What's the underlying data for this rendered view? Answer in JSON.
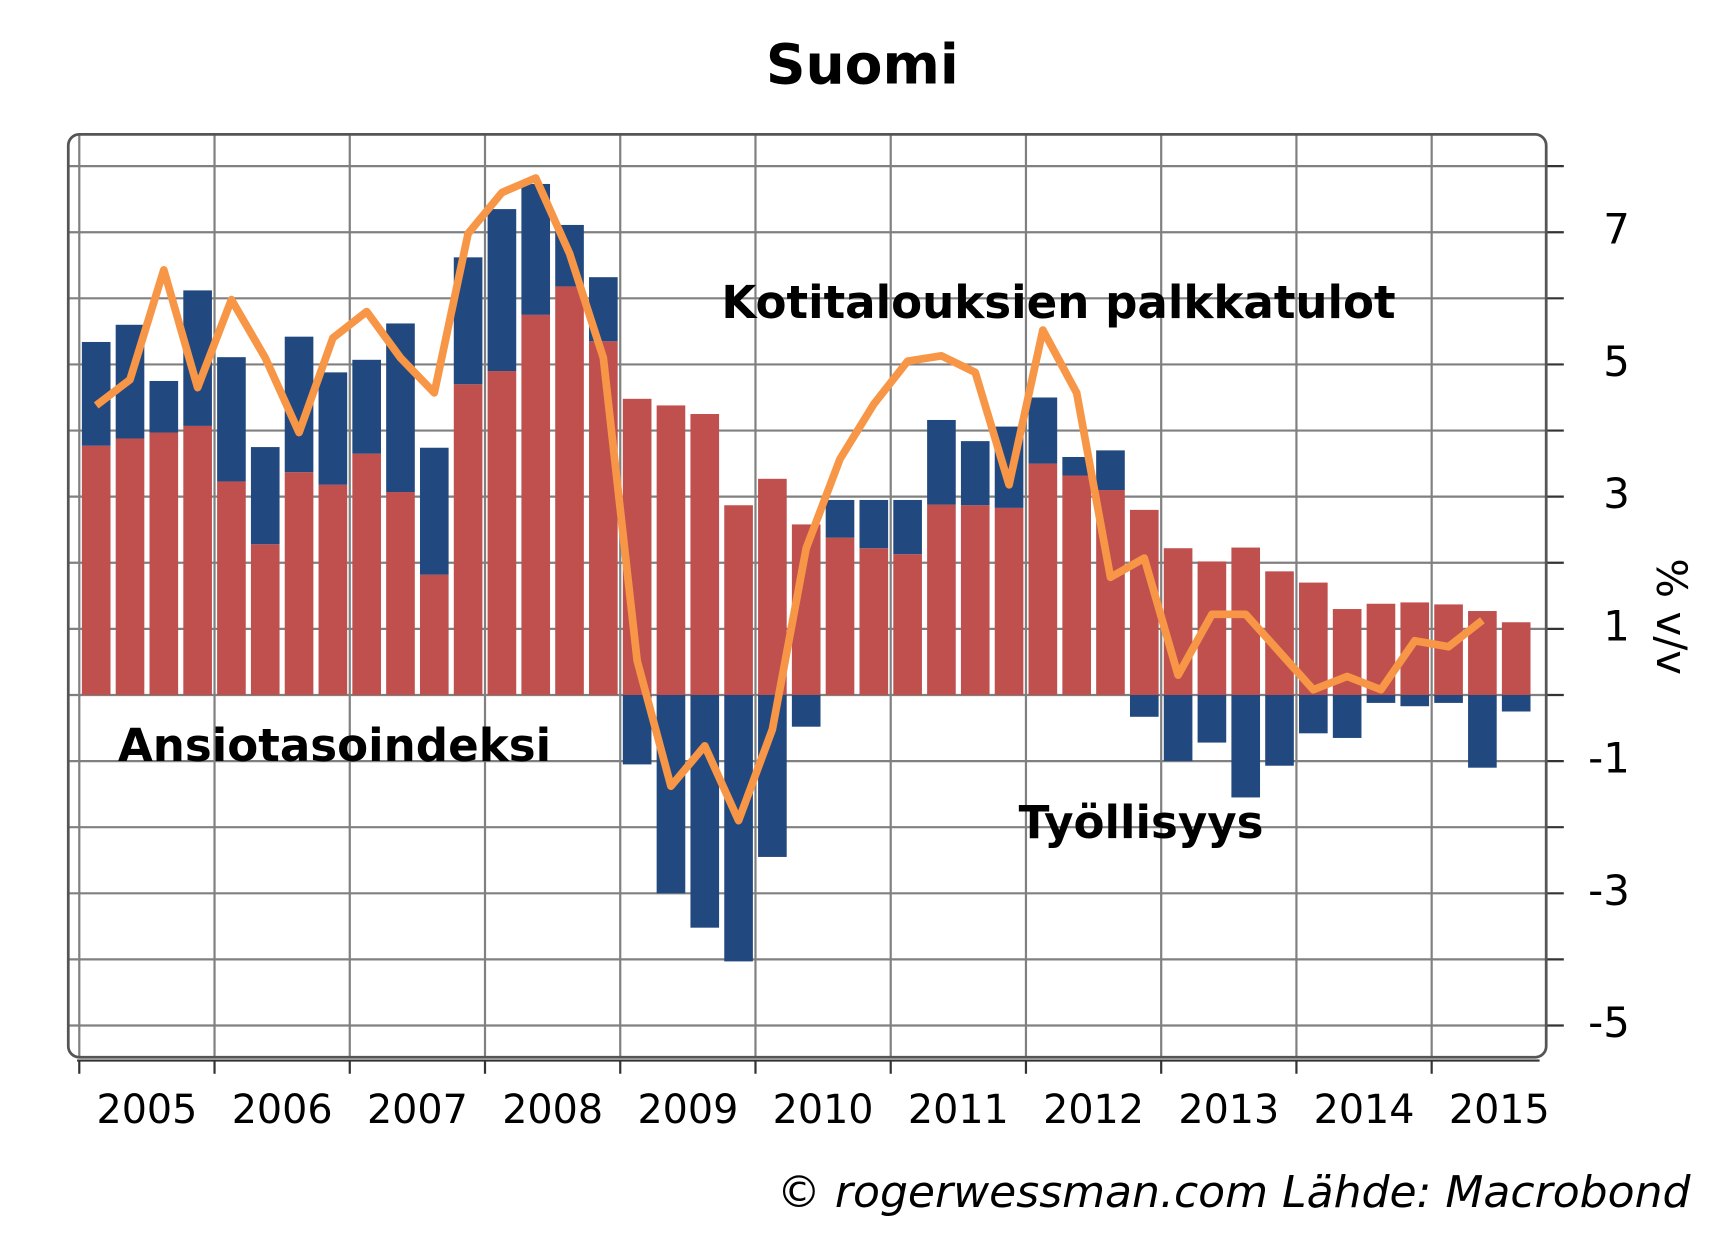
{
  "chart_data": {
    "type": "bar-line",
    "title": "Suomi",
    "y_axis_label": "% v/v",
    "credit": "© rogerwessman.com Lähde: Macrobond",
    "categories": [
      null,
      null,
      null,
      null,
      null,
      null,
      null,
      null,
      null,
      null,
      null,
      null,
      null,
      null,
      null,
      null,
      null,
      null,
      null,
      null,
      null,
      null,
      null,
      null,
      null,
      null,
      null,
      null,
      null,
      null,
      null,
      null,
      null,
      null,
      null,
      null,
      null,
      null,
      null,
      null,
      null,
      null,
      null
    ],
    "xticks": [
      2005,
      2006,
      2007,
      2008,
      2009,
      2010,
      2011,
      2012,
      2013,
      2014,
      2015
    ],
    "ylim": [
      -5.48,
      8.48
    ],
    "yticks": [
      -5,
      -3,
      -1,
      1,
      3,
      5,
      7
    ],
    "yminor_ticks": [
      -4,
      -2,
      0,
      2,
      4,
      6,
      8
    ],
    "grid": true,
    "stacked": true,
    "series": [
      {
        "name": "Ansiotasoindeksi",
        "color": "#c0504d",
        "kind": "bar",
        "values": [
          3.77,
          3.88,
          3.97,
          4.07,
          3.23,
          2.28,
          3.37,
          3.18,
          3.65,
          3.07,
          1.82,
          4.7,
          4.9,
          5.75,
          6.18,
          5.35,
          4.48,
          4.38,
          4.25,
          2.87,
          3.27,
          2.58,
          2.38,
          2.22,
          2.13,
          2.88,
          2.87,
          2.83,
          3.5,
          3.32,
          3.1,
          2.8,
          2.22,
          2.02,
          2.23,
          1.87,
          1.7,
          1.3,
          1.38,
          1.4,
          1.37,
          1.27,
          1.1
        ]
      },
      {
        "name": "Työllisyys",
        "color": "#22497f",
        "kind": "bar",
        "values": [
          1.57,
          1.72,
          0.78,
          2.05,
          1.88,
          1.47,
          2.05,
          1.7,
          1.42,
          2.55,
          1.92,
          1.92,
          2.45,
          1.98,
          0.93,
          0.97,
          -1.05,
          -3.0,
          -3.52,
          -4.03,
          -2.45,
          -0.48,
          0.57,
          0.73,
          0.82,
          1.28,
          0.97,
          1.23,
          1.0,
          0.28,
          0.6,
          -0.33,
          -1.0,
          -0.72,
          -1.55,
          -1.07,
          -0.58,
          -0.65,
          -0.12,
          -0.17,
          -0.12,
          -1.1,
          -0.25
        ]
      },
      {
        "name": "Kotitalouksien palkkatulot",
        "color": "#f79646",
        "kind": "line",
        "values": [
          4.38,
          4.77,
          6.43,
          4.65,
          5.98,
          5.1,
          3.97,
          5.4,
          5.8,
          5.1,
          4.57,
          6.98,
          7.6,
          7.82,
          6.68,
          5.1,
          0.52,
          -1.38,
          -0.77,
          -1.9,
          -0.52,
          2.22,
          3.57,
          4.4,
          5.05,
          5.13,
          4.88,
          3.18,
          5.52,
          4.57,
          1.78,
          2.07,
          0.3,
          1.22,
          1.22,
          0.65,
          0.08,
          0.28,
          0.08,
          0.82,
          0.73,
          1.13,
          null
        ]
      }
    ]
  }
}
